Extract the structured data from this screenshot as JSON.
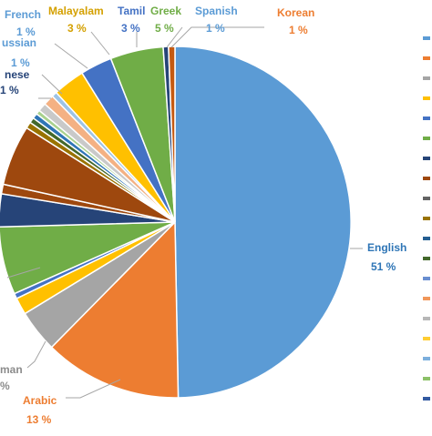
{
  "chart_data": {
    "type": "pie",
    "start_angle_deg": 0,
    "direction": "clockwise",
    "slices": [
      {
        "name": "English",
        "value": 51,
        "label": "51 %",
        "color": "#5B9BD5",
        "label_color": "#5B9BD5"
      },
      {
        "name": "Arabic",
        "value": 13,
        "label": "13 %",
        "color": "#ED7D31",
        "label_color": "#ED7D31"
      },
      {
        "name": "German",
        "value": 4,
        "label": "",
        "color": "#A5A5A5",
        "label_color": "#A5A5A5"
      },
      {
        "name": "",
        "value": 1.6,
        "label": "",
        "color": "#FFC000",
        "label_color": "#FFC000"
      },
      {
        "name": "",
        "value": 0.5,
        "label": "",
        "color": "#4472C4",
        "label_color": "#4472C4"
      },
      {
        "name": "",
        "value": 6.4,
        "label": "",
        "color": "#70AD47",
        "label_color": "#70AD47"
      },
      {
        "name": "",
        "value": 3.1,
        "label": "",
        "color": "#264478",
        "label_color": "#264478"
      },
      {
        "name": "",
        "value": 0.9,
        "label": "",
        "color": "#9E480E",
        "label_color": "#9E480E"
      },
      {
        "name": "",
        "value": 5.7,
        "label": "",
        "color": "#9E480E",
        "label_color": "#9E480E"
      },
      {
        "name": "",
        "value": 0.6,
        "label": "",
        "color": "#997300",
        "label_color": "#997300"
      },
      {
        "name": "",
        "value": 0.5,
        "label": "",
        "color": "#43682B",
        "label_color": "#43682B"
      },
      {
        "name": "Japanese",
        "value": 0.5,
        "label": "",
        "color": "#2E75B6",
        "label_color": "#264478"
      },
      {
        "name": "",
        "value": 0.4,
        "label": "",
        "color": "#A9D18E",
        "label_color": "#A9D18E"
      },
      {
        "name": "Russian",
        "value": 0.8,
        "label": "1 %",
        "color": "#C9C9C9",
        "label_color": "#5B9BD5"
      },
      {
        "name": "French",
        "value": 1,
        "label": "1 %",
        "color": "#F4B183",
        "label_color": "#5B9BD5"
      },
      {
        "name": "",
        "value": 0.5,
        "label": "",
        "color": "#9DC3E6",
        "label_color": "#9DC3E6"
      },
      {
        "name": "Malayalam",
        "value": 3,
        "label": "3 %",
        "color": "#FFC000",
        "label_color": "#FFC000"
      },
      {
        "name": "Tamil",
        "value": 3,
        "label": "3 %",
        "color": "#4472C4",
        "label_color": "#4472C4"
      },
      {
        "name": "Greek",
        "value": 5,
        "label": "5 %",
        "color": "#70AD47",
        "label_color": "#70AD47"
      },
      {
        "name": "Spanish",
        "value": 0.5,
        "label": "1 %",
        "color": "#264478",
        "label_color": "#5B9BD5"
      },
      {
        "name": "Korean",
        "value": 0.6,
        "label": "1 %",
        "color": "#C55A11",
        "label_color": "#ED7D31"
      }
    ],
    "visible_labels": [
      {
        "name_text": "English",
        "value_text": "51 %",
        "color": "#2E75B6"
      },
      {
        "name_text": "Arabic",
        "value_text": "13 %",
        "color": "#ED7D31"
      },
      {
        "name_text": "man",
        "value_text": "%",
        "color": "#8C8C8C"
      },
      {
        "name_text": "nese",
        "value_text": "1 %",
        "color": "#264478"
      },
      {
        "name_text": "ussian",
        "value_text": "1 %",
        "color": "#5B9BD5"
      },
      {
        "name_text": "French",
        "value_text": "1 %",
        "color": "#5B9BD5"
      },
      {
        "name_text": "Malayalam",
        "value_text": "3 %",
        "color": "#D4A000"
      },
      {
        "name_text": "Tamil",
        "value_text": "3 %",
        "color": "#4472C4"
      },
      {
        "name_text": "Greek",
        "value_text": "5 %",
        "color": "#70AD47"
      },
      {
        "name_text": "Spanish",
        "value_text": "1 %",
        "color": "#5B9BD5"
      },
      {
        "name_text": "Korean",
        "value_text": "1 %",
        "color": "#ED7D31"
      }
    ],
    "legend_colors": [
      "#5B9BD5",
      "#ED7D31",
      "#A5A5A5",
      "#FFC000",
      "#4472C4",
      "#70AD47",
      "#264478",
      "#9E480E",
      "#636363",
      "#997300",
      "#255E91",
      "#43682B",
      "#698ED0",
      "#F1975A",
      "#B7B7B7",
      "#FFCD33",
      "#7CAFDD",
      "#8CC168",
      "#335AA1"
    ]
  }
}
